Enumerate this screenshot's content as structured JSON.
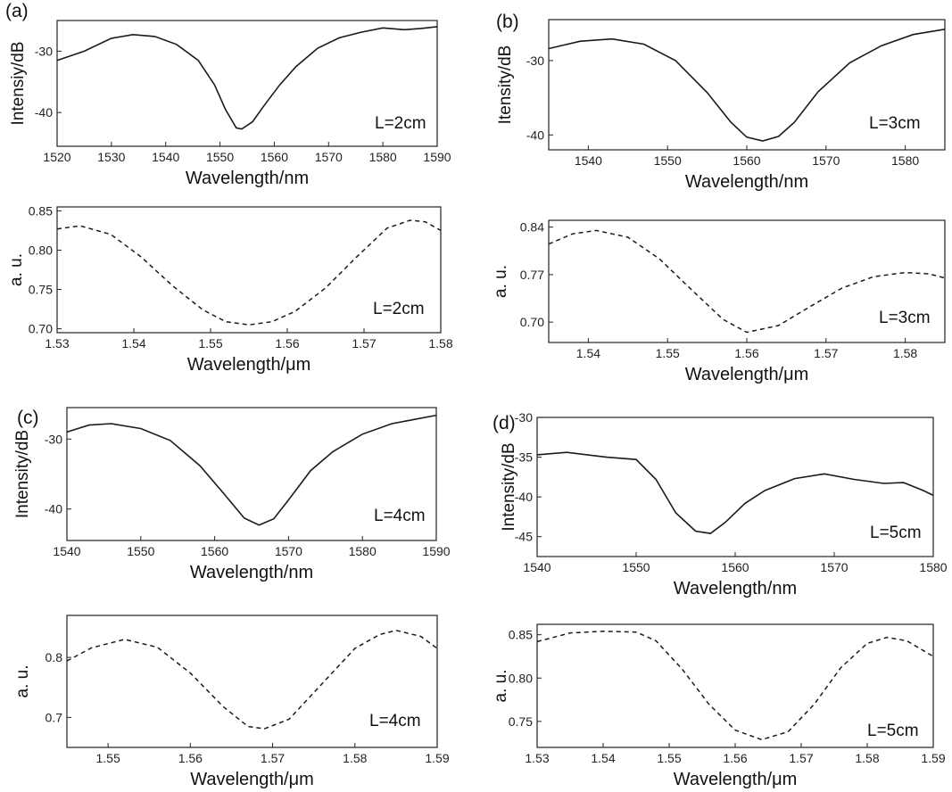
{
  "chart_data": [
    {
      "id": "a-top",
      "panel": "(a)",
      "type": "line",
      "xlabel": "Wavelength/nm",
      "ylabel": "Intensiy/dB",
      "annotation": "L=2cm",
      "xlim": [
        1520,
        1590
      ],
      "ylim": [
        -45.5,
        -25
      ],
      "xticks": [
        1520,
        1530,
        1540,
        1550,
        1560,
        1570,
        1580,
        1590
      ],
      "yticks": [
        -30,
        -40
      ],
      "style": "solid",
      "series": [
        {
          "x": [
            1520,
            1525,
            1530,
            1534,
            1538,
            1542,
            1546,
            1549,
            1551,
            1553,
            1554,
            1556,
            1558,
            1561,
            1564,
            1568,
            1572,
            1576,
            1580,
            1584,
            1587,
            1590
          ],
          "y": [
            -31.5,
            -30,
            -27.9,
            -27.3,
            -27.6,
            -28.9,
            -31.5,
            -35.5,
            -39.5,
            -42.5,
            -42.7,
            -41.5,
            -39,
            -35.5,
            -32.5,
            -29.5,
            -27.8,
            -26.9,
            -26.2,
            -26.5,
            -26.3,
            -26
          ]
        }
      ]
    },
    {
      "id": "a-bottom",
      "type": "line",
      "xlabel": "Wavelength/μm",
      "ylabel": "a. u.",
      "annotation": "L=2cm",
      "xlim": [
        1.53,
        1.58
      ],
      "ylim": [
        0.695,
        0.855
      ],
      "xticks": [
        1.53,
        1.54,
        1.55,
        1.56,
        1.57,
        1.58
      ],
      "yticks": [
        0.7,
        0.75,
        0.8,
        0.85
      ],
      "ytick_labels": [
        "0.70",
        "0.75",
        "0.80",
        "0.85"
      ],
      "style": "dashed",
      "series": [
        {
          "x": [
            1.53,
            1.533,
            1.537,
            1.541,
            1.545,
            1.549,
            1.552,
            1.555,
            1.558,
            1.561,
            1.565,
            1.569,
            1.573,
            1.576,
            1.578,
            1.58
          ],
          "y": [
            0.827,
            0.831,
            0.82,
            0.791,
            0.755,
            0.724,
            0.709,
            0.705,
            0.709,
            0.722,
            0.752,
            0.791,
            0.828,
            0.838,
            0.836,
            0.825
          ]
        }
      ]
    },
    {
      "id": "b-top",
      "panel": "(b)",
      "type": "line",
      "xlabel": "Wavelength/nm",
      "ylabel": "Itensity/dB",
      "annotation": "L=3cm",
      "xlim": [
        1535,
        1585
      ],
      "ylim": [
        -42,
        -24.5
      ],
      "xticks": [
        1540,
        1550,
        1560,
        1570,
        1580
      ],
      "yticks": [
        -30,
        -40
      ],
      "style": "solid",
      "series": [
        {
          "x": [
            1535,
            1539,
            1543,
            1547,
            1551,
            1555,
            1558,
            1560,
            1562,
            1564,
            1566,
            1569,
            1573,
            1577,
            1581,
            1585
          ],
          "y": [
            -28.4,
            -27.4,
            -27.1,
            -27.8,
            -30,
            -34.3,
            -38.3,
            -40.3,
            -40.8,
            -40.2,
            -38.3,
            -34.2,
            -30.3,
            -28,
            -26.5,
            -25.8
          ]
        }
      ]
    },
    {
      "id": "b-bottom",
      "type": "line",
      "xlabel": "Wavelength/μm",
      "ylabel": "a. u.",
      "annotation": "L=3cm",
      "xlim": [
        1.535,
        1.585
      ],
      "ylim": [
        0.67,
        0.85
      ],
      "xticks": [
        1.54,
        1.55,
        1.56,
        1.57,
        1.58
      ],
      "yticks": [
        0.7,
        0.77,
        0.84
      ],
      "ytick_labels": [
        "0.70",
        "0.77",
        "0.84"
      ],
      "style": "dashed",
      "series": [
        {
          "x": [
            1.535,
            1.538,
            1.541,
            1.545,
            1.549,
            1.553,
            1.557,
            1.56,
            1.564,
            1.568,
            1.572,
            1.576,
            1.58,
            1.583,
            1.585
          ],
          "y": [
            0.815,
            0.83,
            0.835,
            0.825,
            0.793,
            0.748,
            0.704,
            0.685,
            0.695,
            0.723,
            0.75,
            0.767,
            0.773,
            0.771,
            0.765
          ]
        }
      ]
    },
    {
      "id": "c-top",
      "panel": "(c)",
      "type": "line",
      "xlabel": "Wavelength/nm",
      "ylabel": "Intensity/dB",
      "annotation": "L=4cm",
      "xlim": [
        1540,
        1590
      ],
      "ylim": [
        -44.5,
        -25.5
      ],
      "xticks": [
        1540,
        1550,
        1560,
        1570,
        1580,
        1590
      ],
      "yticks": [
        -30,
        -40
      ],
      "style": "solid",
      "series": [
        {
          "x": [
            1540,
            1543,
            1546,
            1550,
            1554,
            1558,
            1561,
            1564,
            1566,
            1568,
            1570,
            1573,
            1576,
            1580,
            1584,
            1587,
            1590
          ],
          "y": [
            -29,
            -28,
            -27.8,
            -28.5,
            -30.2,
            -33.8,
            -37.5,
            -41.3,
            -42.3,
            -41.4,
            -38.7,
            -34.5,
            -31.8,
            -29.3,
            -27.8,
            -27.2,
            -26.6
          ]
        }
      ]
    },
    {
      "id": "c-bottom",
      "type": "line",
      "xlabel": "Wavelength/μm",
      "ylabel": "a. u.",
      "annotation": "L=4cm",
      "xlim": [
        1.545,
        1.59
      ],
      "ylim": [
        0.65,
        0.87
      ],
      "xticks": [
        1.55,
        1.56,
        1.57,
        1.58,
        1.59
      ],
      "yticks": [
        0.7,
        0.8
      ],
      "ytick_labels": [
        "0.7",
        "0.8"
      ],
      "style": "dashed",
      "series": [
        {
          "x": [
            1.545,
            1.548,
            1.552,
            1.556,
            1.56,
            1.564,
            1.567,
            1.569,
            1.572,
            1.576,
            1.58,
            1.583,
            1.585,
            1.588,
            1.59
          ],
          "y": [
            0.794,
            0.816,
            0.83,
            0.817,
            0.774,
            0.718,
            0.685,
            0.681,
            0.697,
            0.756,
            0.815,
            0.838,
            0.845,
            0.835,
            0.815
          ]
        }
      ]
    },
    {
      "id": "d-top",
      "panel": "(d)",
      "type": "line",
      "xlabel": "Wavelength/nm",
      "ylabel": "Intensity/dB",
      "annotation": "L=5cm",
      "xlim": [
        1540,
        1580
      ],
      "ylim": [
        -47.5,
        -30
      ],
      "xticks": [
        1540,
        1550,
        1560,
        1570,
        1580
      ],
      "yticks": [
        -30,
        -35,
        -40,
        -45
      ],
      "style": "solid",
      "series": [
        {
          "x": [
            1540,
            1543,
            1547,
            1550,
            1552,
            1554,
            1556,
            1557.5,
            1559,
            1561,
            1563,
            1566,
            1569,
            1572,
            1575,
            1577,
            1579,
            1580
          ],
          "y": [
            -34.7,
            -34.4,
            -35,
            -35.3,
            -37.8,
            -42,
            -44.3,
            -44.6,
            -43.2,
            -40.8,
            -39.2,
            -37.7,
            -37.1,
            -37.8,
            -38.3,
            -38.2,
            -39.2,
            -39.8
          ]
        }
      ]
    },
    {
      "id": "d-bottom",
      "type": "line",
      "xlabel": "Wavelength/μm",
      "ylabel": "a. u.",
      "annotation": "L=5cm",
      "xlim": [
        1.53,
        1.59
      ],
      "ylim": [
        0.72,
        0.862
      ],
      "xticks": [
        1.53,
        1.54,
        1.55,
        1.56,
        1.57,
        1.58,
        1.59
      ],
      "yticks": [
        0.75,
        0.8,
        0.85
      ],
      "ytick_labels": [
        "0.75",
        "0.80",
        "0.85"
      ],
      "style": "dashed",
      "series": [
        {
          "x": [
            1.53,
            1.535,
            1.54,
            1.545,
            1.548,
            1.552,
            1.556,
            1.56,
            1.564,
            1.568,
            1.572,
            1.576,
            1.58,
            1.583,
            1.586,
            1.59
          ],
          "y": [
            0.842,
            0.852,
            0.854,
            0.853,
            0.843,
            0.81,
            0.77,
            0.74,
            0.729,
            0.738,
            0.77,
            0.812,
            0.84,
            0.847,
            0.843,
            0.825
          ]
        }
      ]
    }
  ]
}
